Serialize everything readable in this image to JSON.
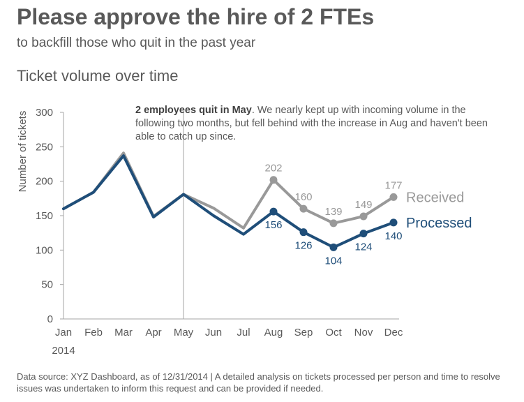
{
  "header": {
    "title": "Please approve the hire of 2 FTEs",
    "subtitle": "to backfill those who quit in the past year"
  },
  "chart_heading": "Ticket volume over time",
  "annotation": {
    "bold": "2 employees quit in May",
    "rest": ". We nearly kept up with incoming volume in the following two months, but fell behind with the increase in Aug and haven't been able to catch up since."
  },
  "footer": "Data source: XYZ Dashboard, as of 12/31/2014  |  A detailed analysis on tickets processed per person and time to resolve issues was undertaken to inform this request and can be provided if needed.",
  "colors": {
    "received": "#999999",
    "processed": "#1f4e79",
    "axis": "#a6a6a6",
    "text": "#595959"
  },
  "chart_data": {
    "type": "line",
    "categories": [
      "Jan",
      "Feb",
      "Mar",
      "Apr",
      "May",
      "Jun",
      "Jul",
      "Aug",
      "Sep",
      "Oct",
      "Nov",
      "Dec"
    ],
    "year_label": "2014",
    "ylabel": "Number of tickets",
    "ylim": [
      0,
      300
    ],
    "yticks": [
      0,
      50,
      100,
      150,
      200,
      250,
      300
    ],
    "grid": false,
    "reference_line": "May",
    "series": [
      {
        "name": "Received",
        "values": [
          160,
          184,
          241,
          149,
          181,
          161,
          132,
          202,
          160,
          139,
          149,
          177
        ],
        "labeled_from": "Aug",
        "label_position": "above",
        "marker_from": "Aug"
      },
      {
        "name": "Processed",
        "values": [
          160,
          184,
          237,
          148,
          181,
          150,
          123,
          156,
          126,
          104,
          124,
          140
        ],
        "labeled_from": "Aug",
        "label_position": "below",
        "marker_from": "Aug"
      }
    ]
  }
}
